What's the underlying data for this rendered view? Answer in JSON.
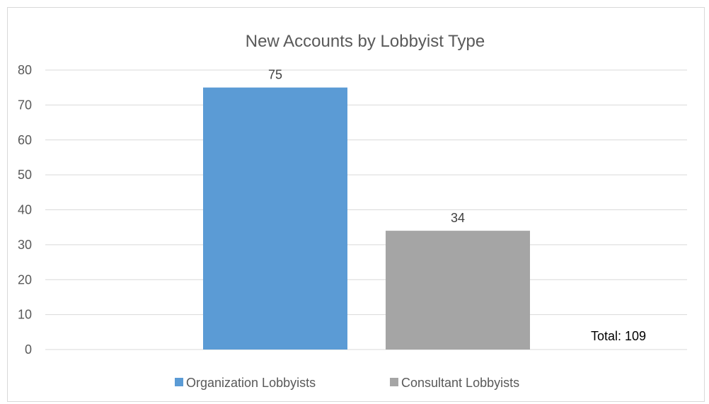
{
  "chart_data": {
    "type": "bar",
    "title": "New Accounts by Lobbyist Type",
    "xlabel": "",
    "ylabel": "",
    "ylim": [
      0,
      80
    ],
    "yticks": [
      0,
      10,
      20,
      30,
      40,
      50,
      60,
      70,
      80
    ],
    "grid": true,
    "legend_position": "bottom",
    "series": [
      {
        "name": "Organization Lobbyists",
        "values": [
          75
        ],
        "color": "#5b9bd5"
      },
      {
        "name": "Consultant Lobbyists",
        "values": [
          34
        ],
        "color": "#a5a5a5"
      }
    ],
    "annotations": [
      "Total: 109"
    ]
  }
}
